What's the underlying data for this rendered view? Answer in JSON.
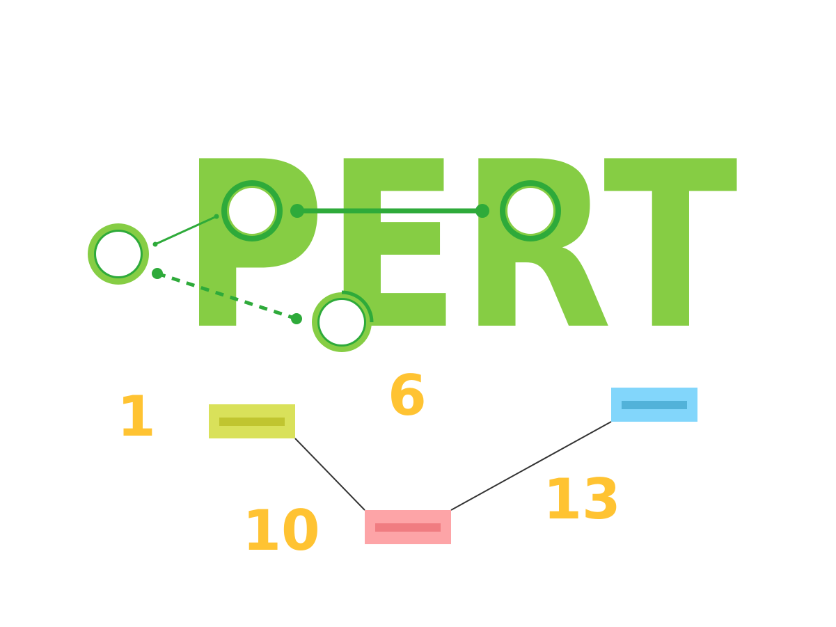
{
  "title": "PERT",
  "colors": {
    "title_green": "#86CD44",
    "node_dark_green": "#2EAA3A",
    "number_yellow": "#FFC332",
    "box_olive": "#D9E15A",
    "box_olive_bar": "#C0C530",
    "box_pink": "#FDA4A7",
    "box_pink_bar": "#F07C81",
    "box_blue": "#82D6FB",
    "box_blue_bar": "#52B2D9",
    "connector": "#333333"
  },
  "numbers": [
    "1",
    "6",
    "10",
    "13"
  ]
}
